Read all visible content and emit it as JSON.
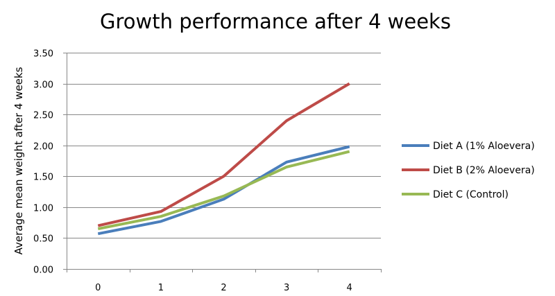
{
  "chart_data": {
    "type": "line",
    "title": "Growth performance after 4 weeks",
    "xlabel": "",
    "ylabel": "Average mean weight after 4 weeks",
    "categories": [
      "0",
      "1",
      "2",
      "3",
      "4"
    ],
    "x": [
      0,
      1,
      2,
      3,
      4
    ],
    "ylim": [
      0,
      3.5
    ],
    "yticks": [
      "0.00",
      "0.50",
      "1.00",
      "1.50",
      "2.00",
      "2.50",
      "3.00",
      "3.50"
    ],
    "grid": true,
    "legend_position": "right",
    "series": [
      {
        "name": "Diet A (1% Aloevera)",
        "color": "#4a7ebb",
        "values": [
          0.57,
          0.77,
          1.13,
          1.73,
          1.98
        ]
      },
      {
        "name": "Diet B (2% Aloevera)",
        "color": "#be4b48",
        "values": [
          0.7,
          0.93,
          1.5,
          2.4,
          3.0
        ]
      },
      {
        "name": "Diet C (Control)",
        "color": "#98b954",
        "values": [
          0.65,
          0.85,
          1.18,
          1.65,
          1.9
        ]
      }
    ]
  }
}
